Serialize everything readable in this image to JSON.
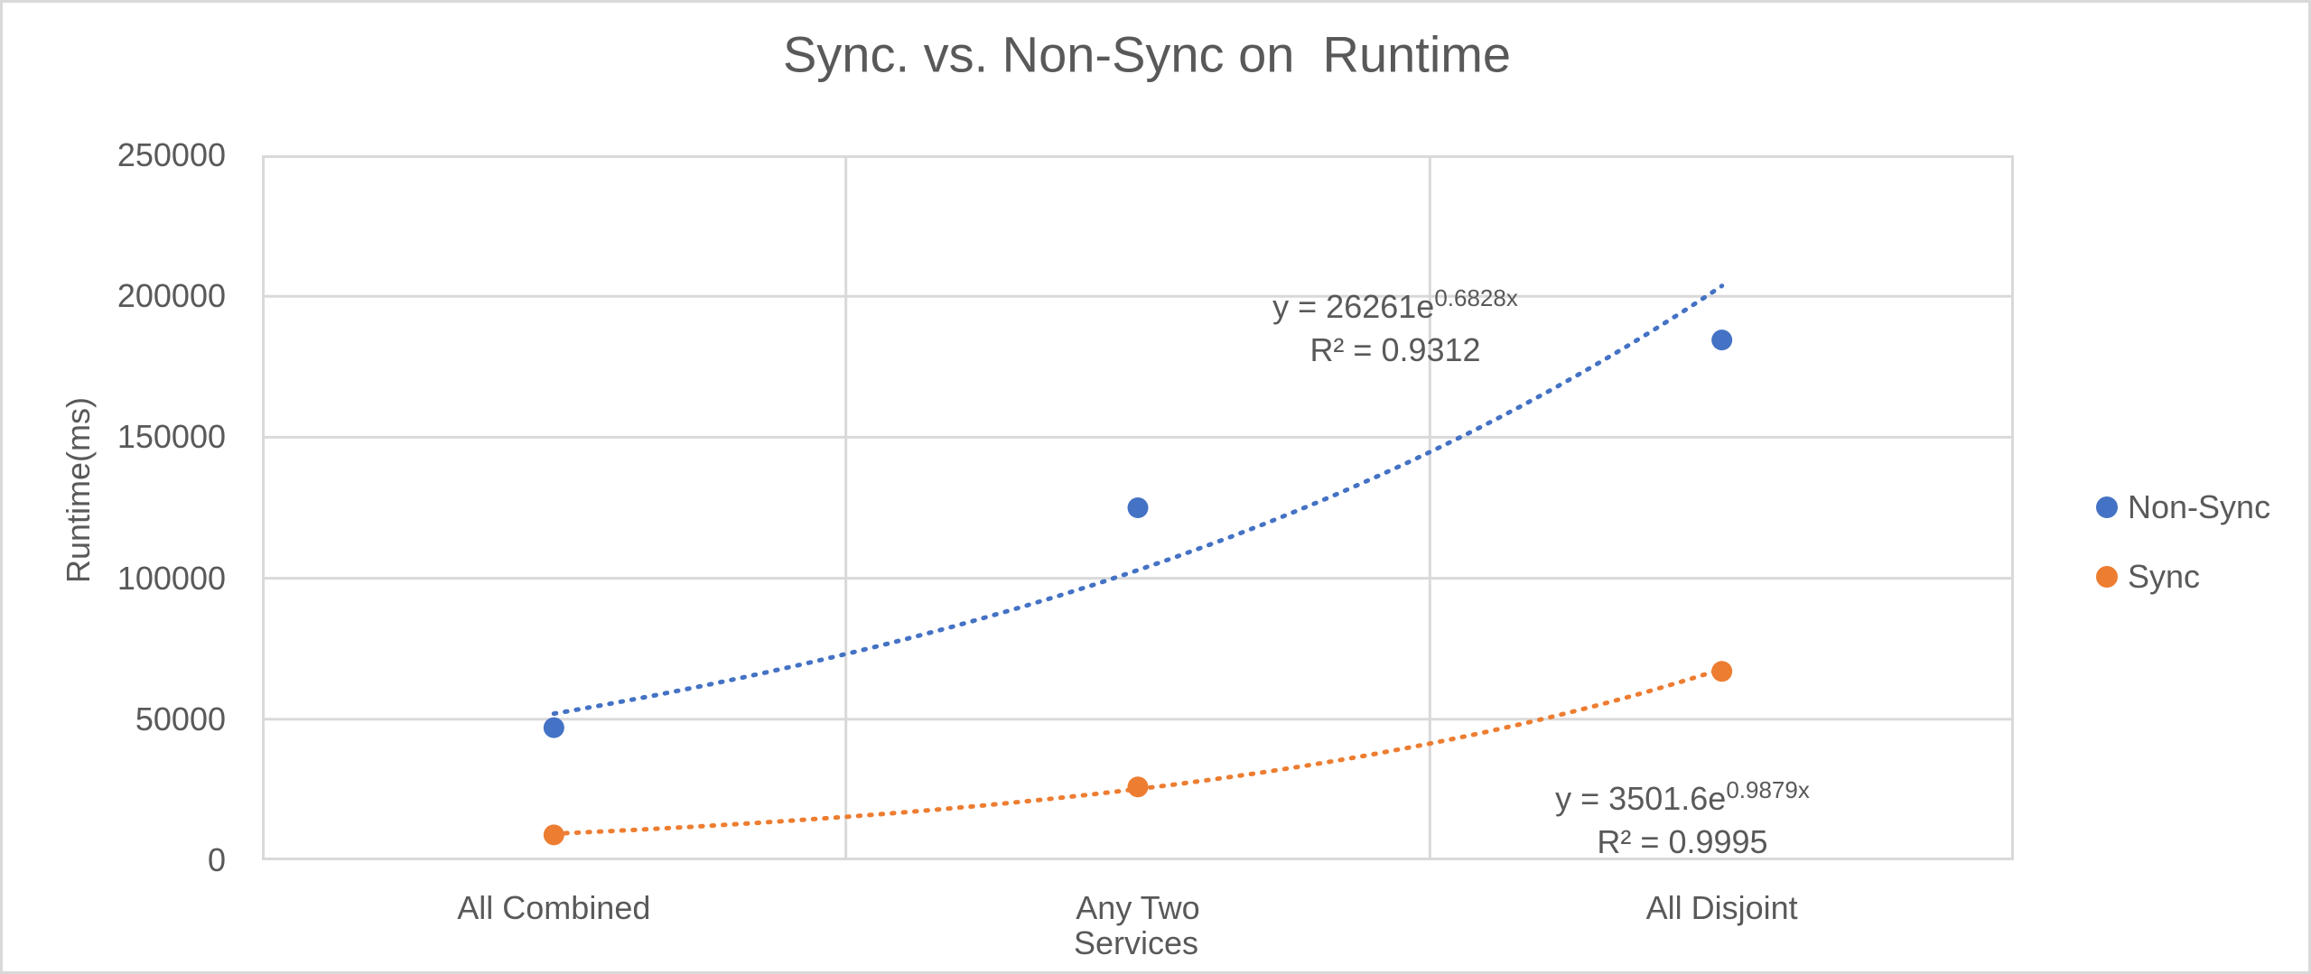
{
  "chart_data": {
    "type": "scatter",
    "title": "Sync. vs. Non-Sync on  Runtime",
    "xlabel": "Services",
    "ylabel": "Runtime(ms)",
    "categories": [
      "All Combined",
      "Any Two",
      "All Disjoint"
    ],
    "ylim": [
      0,
      250000
    ],
    "y_ticks": [
      0,
      50000,
      100000,
      150000,
      200000,
      250000
    ],
    "grid": {
      "horizontal": true,
      "vertical": true
    },
    "legend_position": "right",
    "series": [
      {
        "name": "Non-Sync",
        "color": "#4472C4",
        "values": [
          47000,
          125000,
          184500
        ],
        "trendline": {
          "type": "exponential",
          "a": 26261,
          "b": 0.6828,
          "equation_base": "y = 26261e",
          "equation_exponent": "0.6828x",
          "r_squared": "R² = 0.9312"
        }
      },
      {
        "name": "Sync",
        "color": "#ED7D31",
        "values": [
          9000,
          26000,
          67000
        ],
        "trendline": {
          "type": "exponential",
          "a": 3501.6,
          "b": 0.9879,
          "equation_base": "y = 3501.6e",
          "equation_exponent": "0.9879x",
          "r_squared": "R² = 0.9995"
        }
      }
    ]
  },
  "colors": {
    "text": "#595959",
    "gridline": "#D9D9D9",
    "background": "#FFFFFF",
    "non_sync": "#4472C4",
    "sync": "#ED7D31"
  }
}
